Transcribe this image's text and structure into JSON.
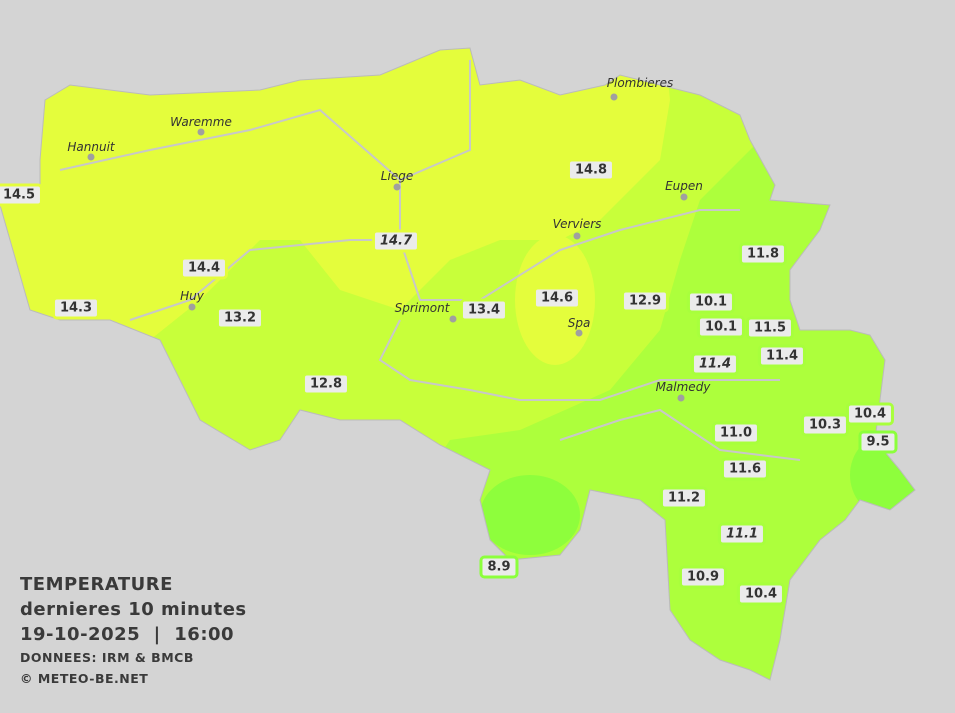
{
  "legend": {
    "title": "TEMPERATURE",
    "subtitle": "dernieres 10 minutes",
    "datetime": "19-10-2025  |  16:00",
    "source": "DONNEES: IRM & BMCB",
    "copyright": "© METEO-BE.NET"
  },
  "colors": {
    "background": "#d4d4d4",
    "zone_above_14": "#e4fd3c",
    "zone_12_14": "#c8ff3a",
    "zone_10_12": "#adff3c",
    "zone_below_10": "#8efe3c",
    "label_bg": "#ebebeb"
  },
  "towns": [
    "Hannuit",
    "Waremme",
    "Liege",
    "Plombieres",
    "Eupen",
    "Verviers",
    "Huy",
    "Sprimont",
    "Spa",
    "Malmedy"
  ],
  "readings": [
    "14.5",
    "14.4",
    "14.3",
    "13.2",
    "12.8",
    "14.7",
    "13.4",
    "14.6",
    "14.8",
    "12.9",
    "10.1",
    "10.1",
    "11.5",
    "11.4",
    "11.8",
    "11.4",
    "10.3",
    "10.4",
    "9.5",
    "11.0",
    "11.6",
    "11.2",
    "11.1",
    "10.9",
    "10.4",
    "8.9"
  ]
}
